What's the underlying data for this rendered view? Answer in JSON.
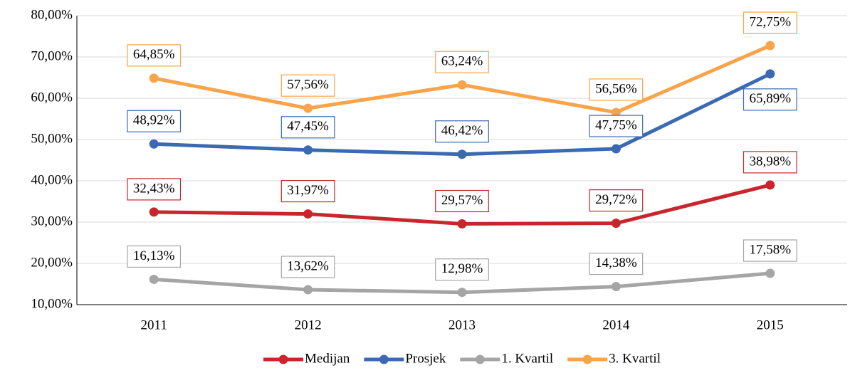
{
  "chart_data": {
    "type": "line",
    "categories": [
      "2011",
      "2012",
      "2013",
      "2014",
      "2015"
    ],
    "ylim": [
      10,
      80
    ],
    "yticks": [
      {
        "value": 10,
        "label": "10,00%"
      },
      {
        "value": 20,
        "label": "20,00%"
      },
      {
        "value": 30,
        "label": "30,00%"
      },
      {
        "value": 40,
        "label": "40,00%"
      },
      {
        "value": 50,
        "label": "50,00%"
      },
      {
        "value": 60,
        "label": "60,00%"
      },
      {
        "value": 70,
        "label": "70,00%"
      },
      {
        "value": 80,
        "label": "80,00%"
      }
    ],
    "grid": true,
    "legend": "bottom",
    "series": [
      {
        "name": "Medijan",
        "color": "#c9252c",
        "values": [
          32.43,
          31.97,
          29.57,
          29.72,
          38.98
        ],
        "value_labels": [
          "32,43%",
          "31,97%",
          "29,57%",
          "29,72%",
          "38,98%"
        ]
      },
      {
        "name": "Prosjek",
        "color": "#3b6ab3",
        "values": [
          48.92,
          47.45,
          46.42,
          47.75,
          65.89
        ],
        "value_labels": [
          "48,92%",
          "47,45%",
          "46,42%",
          "47,75%",
          "65,89%"
        ]
      },
      {
        "name": "1. Kvartil",
        "color": "#a5a5a5",
        "values": [
          16.13,
          13.62,
          12.98,
          14.38,
          17.58
        ],
        "value_labels": [
          "16,13%",
          "13,62%",
          "12,98%",
          "14,38%",
          "17,58%"
        ]
      },
      {
        "name": "3. Kvartil",
        "color": "#f9a34a",
        "values": [
          64.85,
          57.56,
          63.24,
          56.56,
          72.75
        ],
        "value_labels": [
          "64,85%",
          "57,56%",
          "63,24%",
          "56,56%",
          "72,75%"
        ]
      }
    ]
  }
}
